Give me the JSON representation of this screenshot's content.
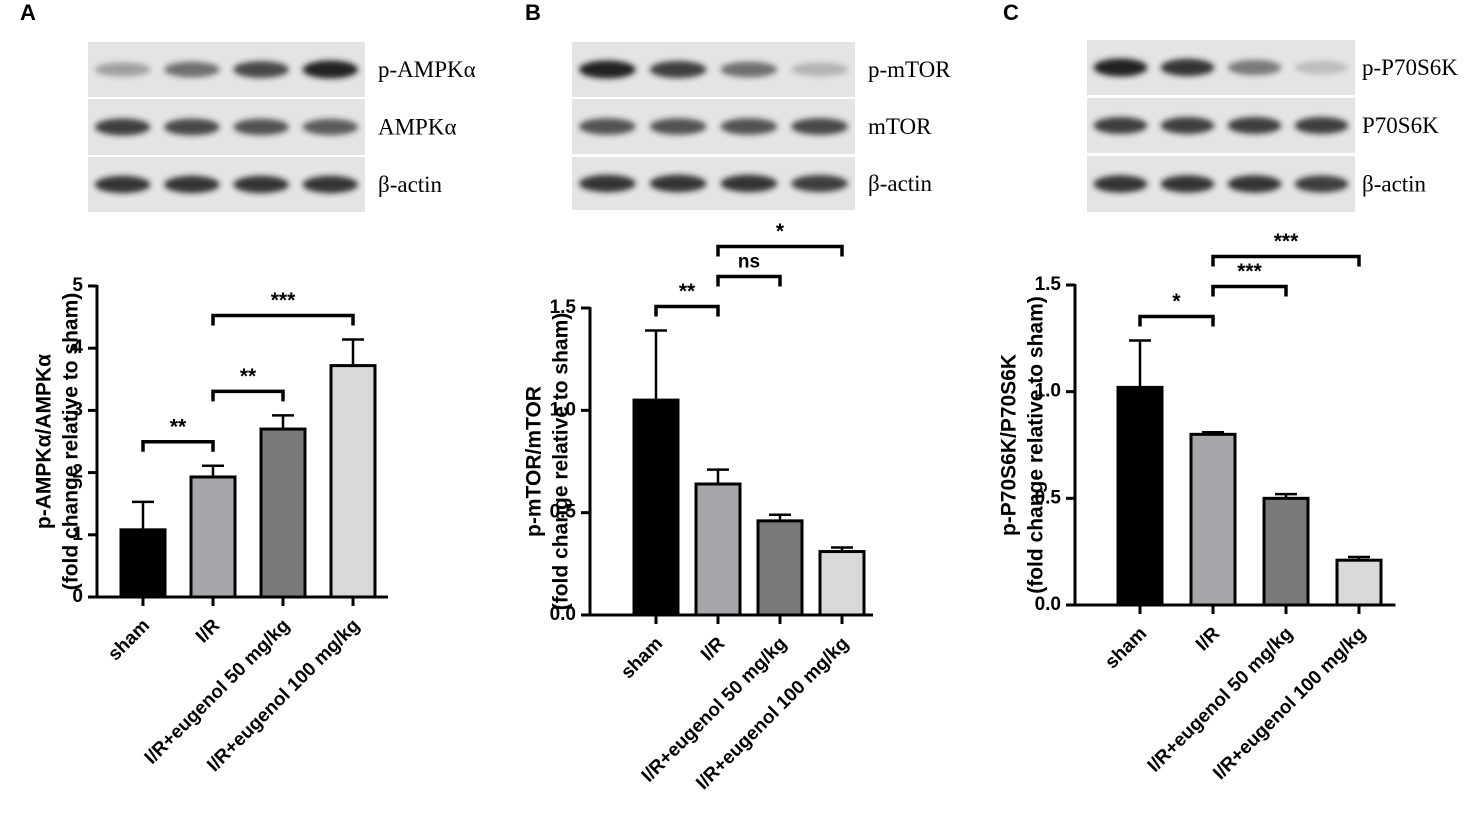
{
  "chart_data": [
    {
      "type": "bar",
      "panel": "A",
      "blot_labels": [
        "p-AMPKα",
        "AMPKα",
        "β-actin"
      ],
      "ylabel": [
        "p-AMPKα/AMPKα",
        "(fold change relative to sham)"
      ],
      "categories": [
        "sham",
        "I/R",
        "I/R+eugenol 50 mg/kg",
        "I/R+eugenol 100 mg/kg"
      ],
      "values": [
        1.08,
        1.93,
        2.7,
        3.72
      ],
      "errors": [
        0.45,
        0.18,
        0.22,
        0.42
      ],
      "colors": [
        "#000000",
        "#a6a6ab",
        "#7a7a7a",
        "#d9d9d9"
      ],
      "ylim": [
        0,
        5
      ],
      "yticks": [
        0,
        1,
        2,
        3,
        4,
        5
      ],
      "annotations": [
        {
          "text": "**",
          "between": [
            "sham",
            "I/R"
          ]
        },
        {
          "text": "**",
          "between": [
            "I/R",
            "I/R+eugenol 50 mg/kg"
          ]
        },
        {
          "text": "***",
          "between": [
            "I/R",
            "I/R+eugenol 100 mg/kg"
          ]
        }
      ]
    },
    {
      "type": "bar",
      "panel": "B",
      "blot_labels": [
        "p-mTOR",
        "mTOR",
        "β-actin"
      ],
      "ylabel": [
        "p-mTOR/mTOR",
        "(fold change relative to sham)"
      ],
      "categories": [
        "sham",
        "I/R",
        "I/R+eugenol 50 mg/kg",
        "I/R+eugenol 100 mg/kg"
      ],
      "values": [
        1.05,
        0.64,
        0.46,
        0.31
      ],
      "errors": [
        0.34,
        0.07,
        0.03,
        0.02
      ],
      "colors": [
        "#000000",
        "#a6a6ab",
        "#7a7a7a",
        "#d9d9d9"
      ],
      "ylim": [
        0,
        1.5
      ],
      "yticks": [
        {
          "value": 0,
          "label": "0.0"
        },
        0.5,
        {
          "value": 1,
          "label": "1.0"
        },
        1.5
      ],
      "annotations": [
        {
          "text": "**",
          "between": [
            "sham",
            "I/R"
          ]
        },
        {
          "text": "ns",
          "between": [
            "I/R",
            "I/R+eugenol 50 mg/kg"
          ]
        },
        {
          "text": "*",
          "between": [
            "I/R",
            "I/R+eugenol 100 mg/kg"
          ]
        }
      ]
    },
    {
      "type": "bar",
      "panel": "C",
      "blot_labels": [
        "p-P70S6K",
        "P70S6K",
        "β-actin"
      ],
      "ylabel": [
        "p-P70S6K/P70S6K",
        "(fold change relative to sham)"
      ],
      "categories": [
        "sham",
        "I/R",
        "I/R+eugenol 50 mg/kg",
        "I/R+eugenol 100 mg/kg"
      ],
      "values": [
        1.02,
        0.8,
        0.5,
        0.21
      ],
      "errors": [
        0.22,
        0.01,
        0.02,
        0.015
      ],
      "colors": [
        "#000000",
        "#a6a6ab",
        "#7a7a7a",
        "#d9d9d9"
      ],
      "ylim": [
        0,
        1.5
      ],
      "yticks": [
        {
          "value": 0,
          "label": "0.0"
        },
        0.5,
        {
          "value": 1,
          "label": "1.0"
        },
        1.5
      ],
      "annotations": [
        {
          "text": "*",
          "between": [
            "sham",
            "I/R"
          ]
        },
        {
          "text": "***",
          "between": [
            "I/R",
            "I/R+eugenol 50 mg/kg"
          ]
        },
        {
          "text": "***",
          "between": [
            "I/R",
            "I/R+eugenol 100 mg/kg"
          ]
        }
      ]
    }
  ]
}
